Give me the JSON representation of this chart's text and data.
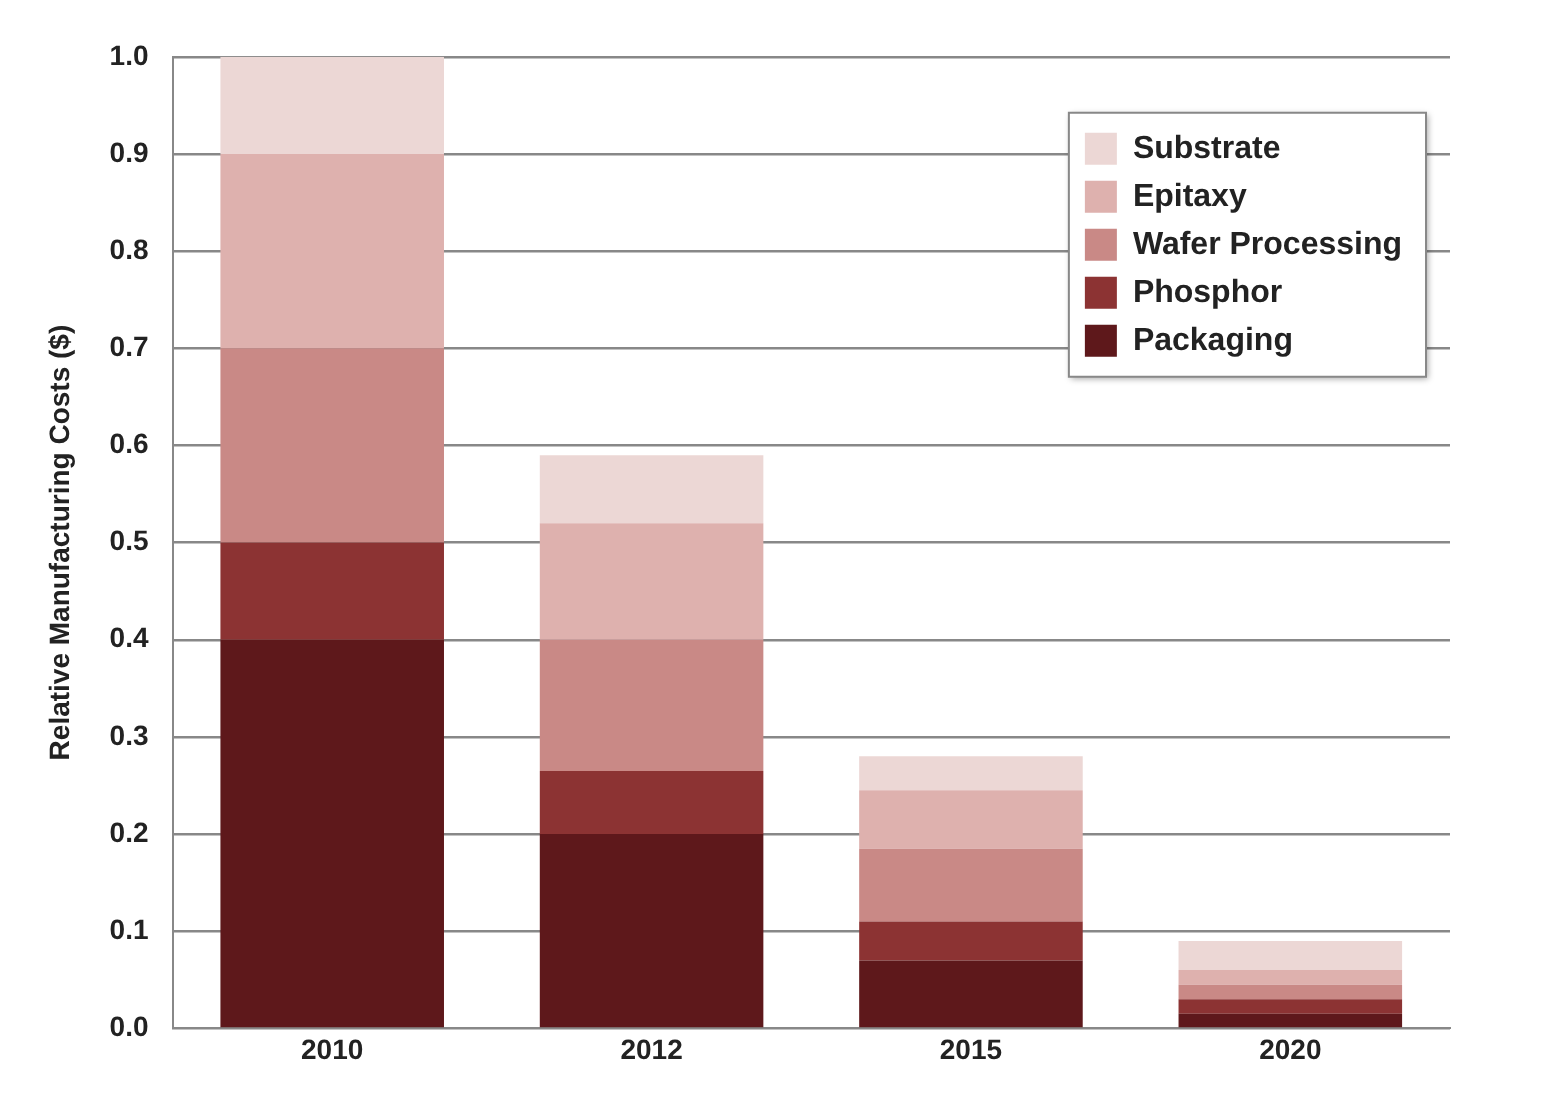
{
  "chart_data": {
    "type": "bar",
    "stacked": true,
    "ylabel": "Relative Manufacturing Costs ($)",
    "categories": [
      "2010",
      "2012",
      "2015",
      "2020"
    ],
    "series": [
      {
        "name": "Packaging",
        "color": "#5e181b",
        "values": [
          0.4,
          0.2,
          0.07,
          0.015
        ]
      },
      {
        "name": "Phosphor",
        "color": "#8c3333",
        "values": [
          0.1,
          0.065,
          0.04,
          0.015
        ]
      },
      {
        "name": "Wafer Processing",
        "color": "#c98986",
        "values": [
          0.2,
          0.135,
          0.075,
          0.015
        ]
      },
      {
        "name": "Epitaxy",
        "color": "#deb1ae",
        "values": [
          0.2,
          0.12,
          0.06,
          0.015
        ]
      },
      {
        "name": "Substrate",
        "color": "#ecd7d5",
        "values": [
          0.1,
          0.07,
          0.035,
          0.03
        ]
      }
    ],
    "ylim": [
      0,
      1
    ],
    "yticks": [
      {
        "value": 0,
        "label": "0.0"
      },
      {
        "value": 0.1,
        "label": "0.1"
      },
      {
        "value": 0.2,
        "label": "0.2"
      },
      {
        "value": 0.3,
        "label": "0.3"
      },
      {
        "value": 0.4,
        "label": "0.4"
      },
      {
        "value": 0.5,
        "label": "0.5"
      },
      {
        "value": 0.6,
        "label": "0.6"
      },
      {
        "value": 0.7,
        "label": "0.7"
      },
      {
        "value": 0.8,
        "label": "0.8"
      },
      {
        "value": 0.9,
        "label": "0.9"
      },
      {
        "value": 1,
        "label": "1.0"
      }
    ],
    "grid": "y",
    "legend": "top right"
  }
}
